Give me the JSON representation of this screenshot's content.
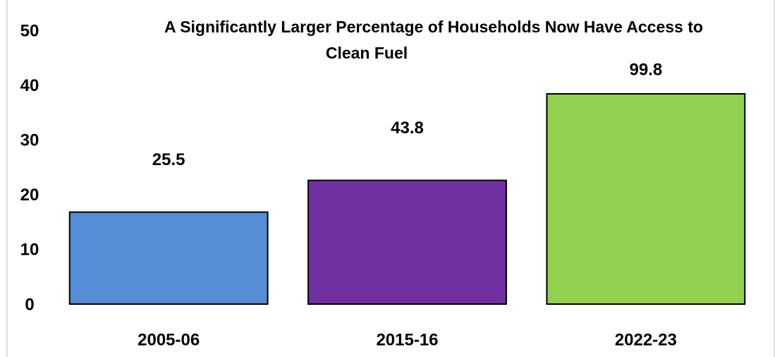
{
  "chart_data": {
    "type": "bar",
    "title": [
      "A Significantly Larger Percentage of Households Now Have Access to",
      "Clean Fuel"
    ],
    "categories": [
      "2005-06",
      "2015-16",
      "2022-23"
    ],
    "values": [
      16.8,
      22.6,
      38.4
    ],
    "annotations": [
      "25.5",
      "43.8",
      "99.8"
    ],
    "colors": [
      "#558ed5",
      "#7030a0",
      "#92d050"
    ],
    "ylim": [
      0,
      50
    ],
    "yticks": [
      0,
      10,
      20,
      30,
      40,
      50
    ],
    "grid": false
  }
}
